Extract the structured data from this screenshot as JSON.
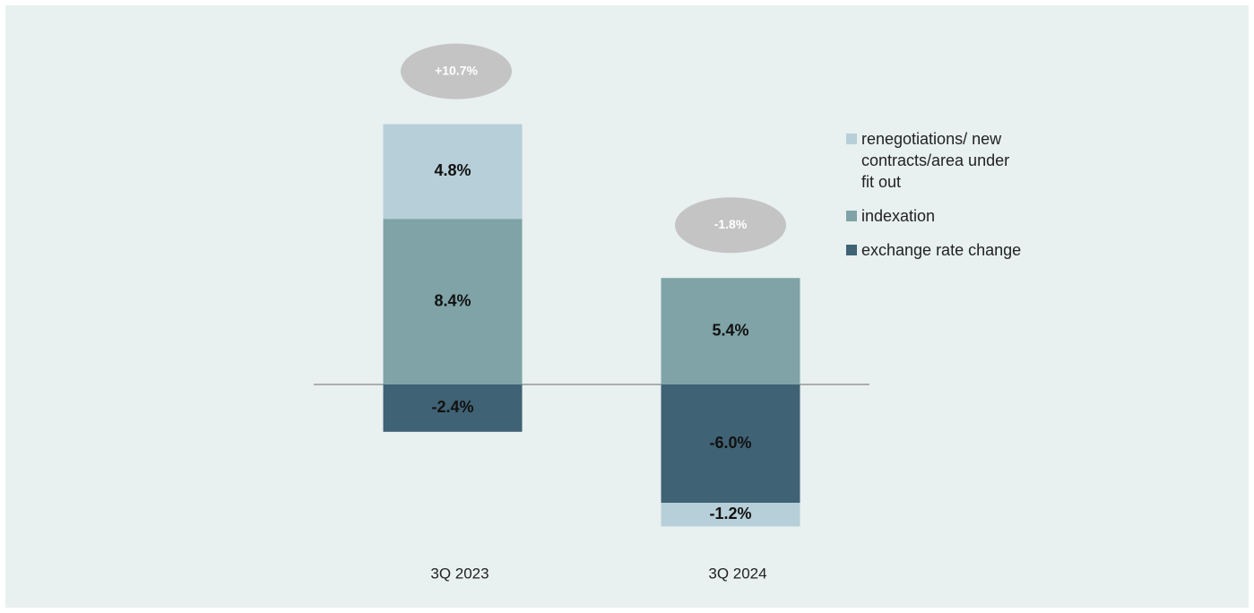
{
  "chart_data": {
    "type": "bar",
    "stacked": true,
    "categories": [
      "3Q 2023",
      "3Q 2024"
    ],
    "series": [
      {
        "name": "renegotiations/ new contracts/area under fit out",
        "color": "#b7cfd8",
        "values": [
          4.8,
          -1.2
        ],
        "value_labels": [
          "4.8%",
          "-1.2%"
        ]
      },
      {
        "name": "indexation",
        "color": "#7fa3a7",
        "values": [
          8.4,
          5.4
        ],
        "value_labels": [
          "8.4%",
          "5.4%"
        ]
      },
      {
        "name": "exchange rate change",
        "color": "#3f6274",
        "values": [
          -2.4,
          -6.0
        ],
        "value_labels": [
          "-2.4%",
          "-6.0%"
        ]
      }
    ],
    "totals": [
      10.7,
      -1.8
    ],
    "total_labels": [
      "+10.7%",
      "-1.8%"
    ],
    "legend": "right"
  }
}
